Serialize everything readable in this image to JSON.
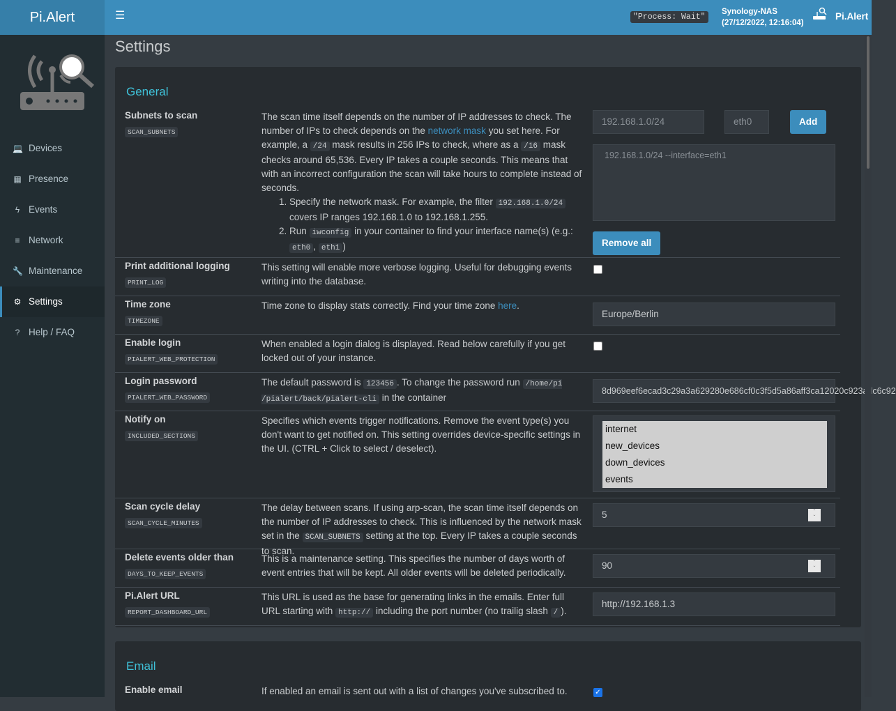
{
  "header": {
    "brand": "Pi.Alert",
    "process_status": "\"Process: Wait\"",
    "host": "Synology-NAS",
    "datetime": "(27/12/2022, 12:16:04)",
    "user": "Pi.Alert"
  },
  "sidebar": {
    "items": [
      {
        "label": "Devices",
        "icon": "laptop-icon"
      },
      {
        "label": "Presence",
        "icon": "calendar-icon"
      },
      {
        "label": "Events",
        "icon": "bolt-icon"
      },
      {
        "label": "Network",
        "icon": "server-icon"
      },
      {
        "label": "Maintenance",
        "icon": "wrench-icon"
      },
      {
        "label": "Settings",
        "icon": "gear-icon",
        "active": true
      },
      {
        "label": "Help / FAQ",
        "icon": "question-icon"
      }
    ]
  },
  "page_title": "Settings",
  "general": {
    "title": "General",
    "subnets": {
      "label": "Subnets to scan",
      "key": "SCAN_SUBNETS",
      "d1": "The scan time itself depends on the number of IP addresses to check. The number of IPs to check depends on the ",
      "link": "network mask",
      "d2": " you set here. For example, a ",
      "c1": "/24",
      "d3": " mask results in 256 IPs to check, where as a ",
      "c2": "/16",
      "d4": " mask checks around 65,536. Every IP takes a couple seconds. This means that with an incorrect configuration the scan will take hours to complete instead of seconds.",
      "li1a": "Specify the network mask. For example, the filter ",
      "li1c": "192.168.1.0/24",
      "li1b": " covers IP ranges 192.168.1.0 to 192.168.1.255.",
      "li2a": "Run ",
      "li2c": "iwconfig",
      "li2b": " in your container to find your interface name(s) (e.g.: ",
      "li2c2": "eth0",
      "li2sep": ", ",
      "li2c3": "eth1",
      "li2end": ")",
      "subnet_placeholder": "192.168.1.0/24",
      "iface_placeholder": "eth0",
      "add": "Add",
      "list": "192.168.1.0/24 --interface=eth1",
      "remove_all": "Remove all"
    },
    "print_log": {
      "label": "Print additional logging",
      "key": "PRINT_LOG",
      "desc": "This setting will enable more verbose logging. Useful for debugging events writing into the database.",
      "checked": false
    },
    "timezone": {
      "label": "Time zone",
      "key": "TIMEZONE",
      "desc": "Time zone to display stats correctly. Find your time zone ",
      "link": "here",
      "end": ".",
      "value": "Europe/Berlin"
    },
    "login": {
      "label": "Enable login",
      "key": "PIALERT_WEB_PROTECTION",
      "desc": "When enabled a login dialog is displayed. Read below carefully if you get locked out of your instance.",
      "checked": false
    },
    "password": {
      "label": "Login password",
      "key": "PIALERT_WEB_PASSWORD",
      "d1": "The default password is ",
      "c1": "123456",
      "d2": ". To change the password run ",
      "c2": "/home/pi /pialert/back/pialert-cli",
      "d3": " in the container",
      "value": "8d969eef6ecad3c29a3a629280e686cf0c3f5d5a86aff3ca12020c923adc6c92"
    },
    "notify": {
      "label": "Notify on",
      "key": "INCLUDED_SECTIONS",
      "desc": "Specifies which events trigger notifications. Remove the event type(s) you don't want to get notified on. This setting overrides device-specific settings in the UI. (CTRL + Click to select / deselect).",
      "options": [
        "internet",
        "new_devices",
        "down_devices",
        "events"
      ]
    },
    "cycle": {
      "label": "Scan cycle delay",
      "key": "SCAN_CYCLE_MINUTES",
      "d1": "The delay between scans. If using arp-scan, the scan time itself depends on the number of IP addresses to check. This is influenced by the network mask set in the ",
      "c1": "SCAN_SUBNETS",
      "d2": " setting at the top. Every IP takes a couple seconds to scan.",
      "value": "5"
    },
    "days": {
      "label": "Delete events older than",
      "key": "DAYS_TO_KEEP_EVENTS",
      "desc": "This is a maintenance setting. This specifies the number of days worth of event entries that will be kept. All older events will be deleted periodically.",
      "value": "90"
    },
    "url": {
      "label": "Pi.Alert URL",
      "key": "REPORT_DASHBOARD_URL",
      "d1": "This URL is used as the base for generating links in the emails. Enter full URL starting with ",
      "c1": "http://",
      "d2": " including the port number (no trailig slash ",
      "c2": "/",
      "d3": ").",
      "value": "http://192.168.1.3"
    }
  },
  "email": {
    "title": "Email",
    "enable": {
      "label": "Enable email",
      "desc": "If enabled an email is sent out with a list of changes you've subscribed to.",
      "checked": true
    }
  },
  "colors": {
    "header": "#3c8dbc",
    "sidebar": "#222d32",
    "accent": "#3fc1d8"
  }
}
